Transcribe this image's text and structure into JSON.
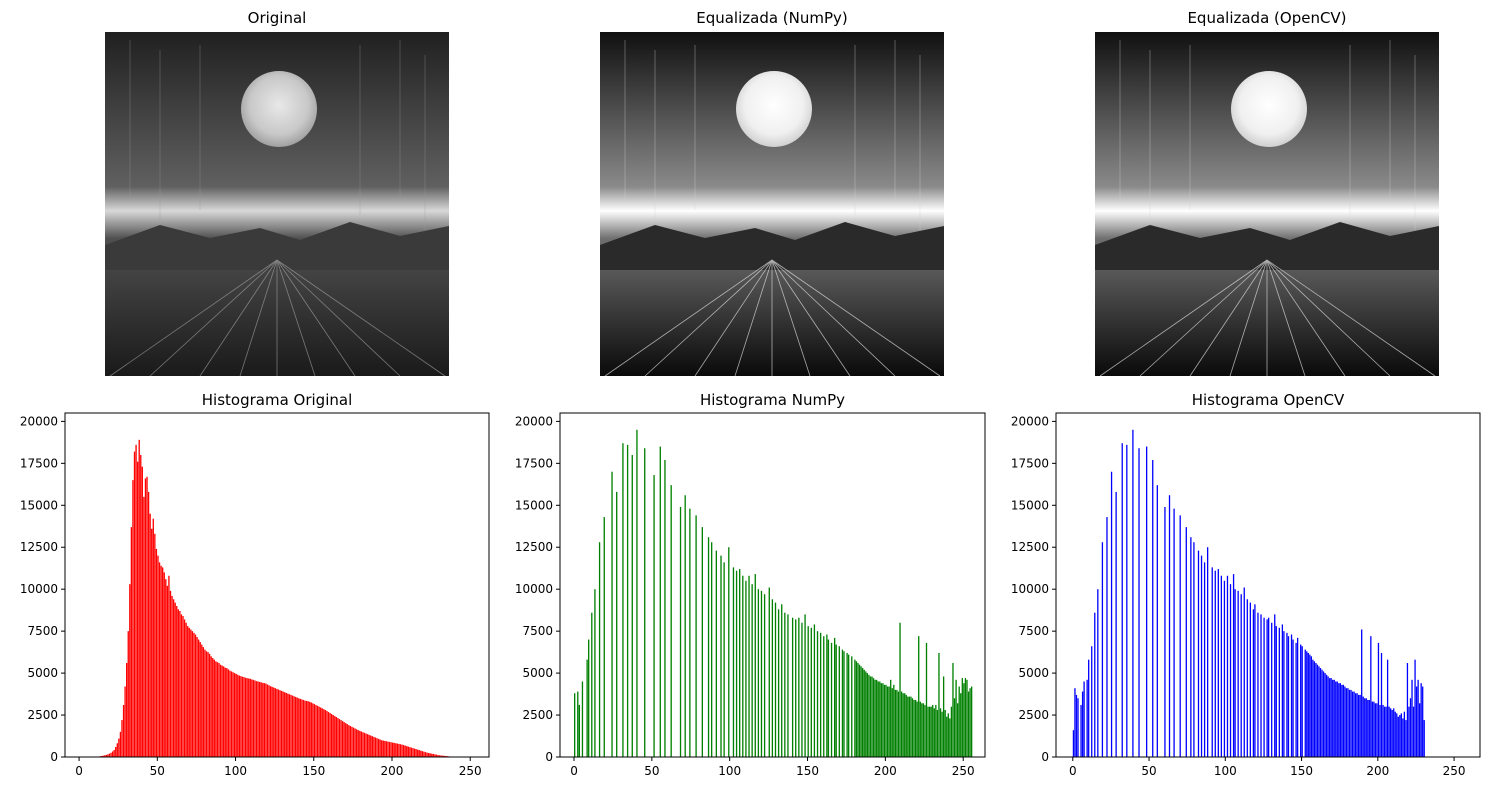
{
  "images": [
    {
      "title": "Original"
    },
    {
      "title": "Equalizada (NumPy)"
    },
    {
      "title": "Equalizada (OpenCV)"
    }
  ],
  "chart_data": [
    {
      "type": "bar",
      "title": "Histograma Original",
      "xlabel": "",
      "ylabel": "",
      "xlim": [
        -9,
        262
      ],
      "ylim": [
        0,
        20500
      ],
      "xticks": [
        0,
        50,
        100,
        150,
        200,
        250
      ],
      "yticks": [
        0,
        2500,
        5000,
        7500,
        10000,
        12500,
        15000,
        17500,
        20000
      ],
      "color": "#ff0000",
      "grid": false,
      "x_start": 0,
      "values": [
        0,
        0,
        0,
        0,
        0,
        0,
        0,
        0,
        0,
        5,
        10,
        15,
        30,
        45,
        60,
        80,
        100,
        125,
        160,
        200,
        250,
        330,
        420,
        600,
        820,
        1100,
        1500,
        2200,
        3100,
        4200,
        5600,
        7500,
        10300,
        13700,
        16500,
        18200,
        18600,
        17600,
        18900,
        18000,
        17300,
        15500,
        16600,
        16700,
        15800,
        14500,
        13600,
        14200,
        13300,
        12400,
        12000,
        11600,
        11400,
        11300,
        11000,
        10600,
        10200,
        10800,
        9900,
        9600,
        9400,
        9200,
        9000,
        8800,
        8700,
        8500,
        8400,
        8200,
        8000,
        7800,
        7700,
        7600,
        7500,
        7400,
        7300,
        7150,
        7000,
        6850,
        6700,
        6550,
        6400,
        6300,
        6250,
        6150,
        6000,
        5900,
        5800,
        5700,
        5650,
        5600,
        5500,
        5450,
        5400,
        5320,
        5300,
        5220,
        5150,
        5100,
        5050,
        5000,
        4950,
        4900,
        4850,
        4820,
        4780,
        4760,
        4720,
        4700,
        4680,
        4660,
        4620,
        4600,
        4560,
        4520,
        4500,
        4470,
        4450,
        4420,
        4400,
        4380,
        4320,
        4270,
        4220,
        4180,
        4140,
        4100,
        4060,
        4020,
        3980,
        3940,
        3900,
        3860,
        3820,
        3780,
        3740,
        3700,
        3660,
        3620,
        3580,
        3540,
        3500,
        3460,
        3430,
        3400,
        3360,
        3340,
        3320,
        3290,
        3250,
        3200,
        3150,
        3100,
        3050,
        3000,
        2950,
        2900,
        2850,
        2800,
        2740,
        2680,
        2620,
        2560,
        2500,
        2440,
        2380,
        2320,
        2260,
        2200,
        2140,
        2080,
        2020,
        1960,
        1900,
        1850,
        1800,
        1750,
        1700,
        1650,
        1600,
        1560,
        1520,
        1480,
        1440,
        1400,
        1360,
        1320,
        1280,
        1240,
        1200,
        1160,
        1120,
        1080,
        1040,
        1000,
        980,
        960,
        940,
        920,
        900,
        880,
        860,
        840,
        820,
        800,
        780,
        760,
        740,
        710,
        680,
        650,
        620,
        590,
        560,
        530,
        500,
        470,
        440,
        410,
        380,
        350,
        320,
        290,
        260,
        240,
        220,
        200,
        180,
        160,
        140,
        120,
        100,
        90,
        80,
        70,
        60,
        50,
        40,
        30,
        20,
        10,
        5,
        0,
        0,
        0,
        0,
        0,
        0
      ]
    },
    {
      "type": "bar",
      "title": "Histograma NumPy",
      "xlabel": "",
      "ylabel": "",
      "xlim": [
        -9,
        264
      ],
      "ylim": [
        0,
        20500
      ],
      "xticks": [
        0,
        50,
        100,
        150,
        200,
        250
      ],
      "yticks": [
        0,
        2500,
        5000,
        7500,
        10000,
        12500,
        15000,
        17500,
        20000
      ],
      "color": "#008000",
      "grid": false,
      "x_start": 0,
      "values": [
        3800,
        0,
        3900,
        3100,
        0,
        4500,
        0,
        0,
        5800,
        7000,
        0,
        8600,
        0,
        10000,
        0,
        0,
        12800,
        0,
        0,
        14300,
        0,
        0,
        0,
        0,
        17000,
        0,
        0,
        15800,
        0,
        0,
        0,
        18700,
        0,
        0,
        18600,
        0,
        0,
        18000,
        0,
        0,
        19500,
        0,
        0,
        0,
        0,
        18400,
        0,
        0,
        0,
        0,
        0,
        16800,
        0,
        0,
        0,
        18500,
        0,
        0,
        17700,
        0,
        0,
        0,
        16200,
        0,
        0,
        0,
        0,
        0,
        14900,
        0,
        0,
        15600,
        0,
        0,
        14800,
        0,
        0,
        0,
        14400,
        0,
        0,
        0,
        13700,
        0,
        0,
        0,
        13100,
        0,
        12800,
        0,
        0,
        12300,
        0,
        0,
        12000,
        0,
        11600,
        0,
        0,
        12500,
        0,
        0,
        11300,
        0,
        11100,
        0,
        11200,
        0,
        10800,
        0,
        10500,
        0,
        10800,
        0,
        10300,
        0,
        10900,
        0,
        10000,
        0,
        9900,
        0,
        9700,
        0,
        0,
        10100,
        0,
        9400,
        0,
        9200,
        0,
        8800,
        0,
        9100,
        0,
        8600,
        0,
        8500,
        0,
        0,
        8300,
        0,
        8200,
        0,
        8300,
        0,
        8000,
        0,
        8500,
        0,
        7800,
        0,
        7700,
        0,
        7900,
        0,
        7500,
        0,
        7400,
        0,
        7200,
        0,
        7300,
        7000,
        0,
        6800,
        0,
        7100,
        6700,
        0,
        6600,
        0,
        6400,
        6300,
        0,
        6200,
        6100,
        0,
        6000,
        0,
        5800,
        5700,
        5600,
        5500,
        5400,
        5300,
        5200,
        5100,
        5000,
        4900,
        4800,
        4800,
        4700,
        4600,
        4600,
        4500,
        4500,
        4400,
        4400,
        4300,
        4300,
        4200,
        4200,
        4600,
        4100,
        4300,
        4000,
        4000,
        3900,
        8000,
        3900,
        3800,
        3800,
        3700,
        3600,
        3600,
        3600,
        3500,
        3400,
        3400,
        3300,
        7200,
        3300,
        3200,
        3200,
        3100,
        6800,
        3000,
        3000,
        3000,
        3100,
        2900,
        3100,
        2800,
        6200,
        2900,
        2700,
        4800,
        2800,
        2400,
        2600,
        2300,
        3000,
        5600,
        3500,
        4600,
        3200,
        4200,
        3800,
        4700,
        4400,
        4700,
        4600,
        3900,
        4100,
        4200
      ]
    },
    {
      "type": "bar",
      "title": "Histograma OpenCV",
      "xlabel": "",
      "ylabel": "",
      "xlim": [
        -11,
        267
      ],
      "ylim": [
        0,
        20500
      ],
      "xticks": [
        0,
        50,
        100,
        150,
        200,
        250
      ],
      "yticks": [
        0,
        2500,
        5000,
        7500,
        10000,
        12500,
        15000,
        17500,
        20000
      ],
      "color": "#0000ff",
      "grid": false,
      "x_start": 0,
      "values": [
        1600,
        4100,
        3700,
        3500,
        0,
        3100,
        3900,
        4500,
        0,
        4600,
        5800,
        0,
        6600,
        0,
        8600,
        0,
        10000,
        0,
        0,
        12800,
        0,
        0,
        14300,
        0,
        0,
        17000,
        0,
        0,
        15800,
        0,
        0,
        0,
        18700,
        0,
        0,
        18600,
        0,
        0,
        0,
        19500,
        0,
        0,
        0,
        18400,
        0,
        0,
        0,
        0,
        18500,
        0,
        0,
        0,
        17700,
        0,
        0,
        16200,
        0,
        0,
        0,
        0,
        14900,
        0,
        0,
        15600,
        0,
        0,
        14800,
        0,
        0,
        0,
        14400,
        0,
        0,
        0,
        13700,
        0,
        0,
        13100,
        0,
        12800,
        0,
        0,
        12300,
        0,
        12000,
        0,
        11600,
        0,
        12500,
        0,
        0,
        11300,
        0,
        11100,
        0,
        11200,
        0,
        10800,
        0,
        10500,
        0,
        10800,
        0,
        10300,
        0,
        10900,
        10000,
        0,
        9900,
        0,
        9700,
        0,
        10100,
        0,
        9400,
        0,
        9200,
        0,
        8800,
        9100,
        0,
        8600,
        0,
        8500,
        0,
        8300,
        0,
        8200,
        8300,
        0,
        8000,
        0,
        8500,
        7800,
        0,
        7700,
        0,
        7900,
        7500,
        0,
        7400,
        7200,
        0,
        7300,
        7000,
        0,
        6800,
        7100,
        0,
        6700,
        6600,
        0,
        6400,
        6300,
        6200,
        6100,
        6000,
        5800,
        5700,
        5600,
        5500,
        5400,
        5300,
        5200,
        5100,
        5000,
        4900,
        4800,
        4700,
        4700,
        4600,
        4600,
        4500,
        4500,
        4400,
        4400,
        4300,
        4300,
        4200,
        4100,
        4100,
        4000,
        4000,
        3900,
        3900,
        3800,
        3800,
        3700,
        3700,
        7600,
        3600,
        3500,
        3500,
        3400,
        3400,
        7200,
        3300,
        3300,
        3200,
        3200,
        6800,
        3100,
        6200,
        3100,
        3000,
        3000,
        5800,
        3000,
        2900,
        2800,
        2900,
        2700,
        2600,
        2400,
        2500,
        2600,
        2300,
        2700,
        2200,
        5600,
        3000,
        3500,
        4600,
        3000,
        5800,
        4200,
        4600,
        3200,
        4400,
        4200,
        2200
      ]
    }
  ]
}
